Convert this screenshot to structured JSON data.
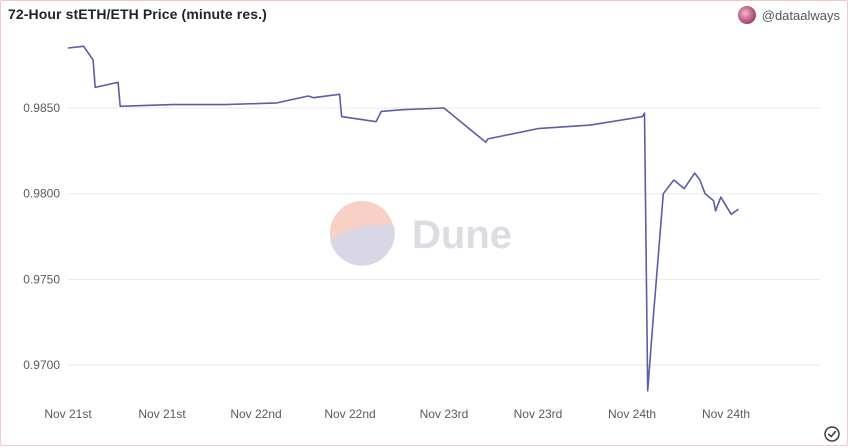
{
  "header": {
    "title": "72-Hour stETH/ETH Price (minute res.)",
    "author": "@dataalways"
  },
  "watermark": {
    "text": "Dune"
  },
  "colors": {
    "line": "#5b5ea6",
    "grid": "#e8e8ea",
    "tick": "#555b63"
  },
  "chart_data": {
    "type": "line",
    "title": "72-Hour stETH/ETH Price (minute res.)",
    "xlabel": "",
    "ylabel": "",
    "ylim": [
      0.9682,
      0.9892
    ],
    "yticks": [
      0.97,
      0.975,
      0.98,
      0.985
    ],
    "ytick_labels": [
      "0.9700",
      "0.9750",
      "0.9800",
      "0.9850"
    ],
    "xlim": [
      0,
      72
    ],
    "xticks": [
      0,
      9,
      18,
      27,
      36,
      45,
      54,
      63
    ],
    "xtick_labels": [
      "Nov 21st",
      "Nov 21st",
      "Nov 22nd",
      "Nov 22nd",
      "Nov 23rd",
      "Nov 23rd",
      "Nov 24th",
      "Nov 24th"
    ],
    "grid": true,
    "legend": "none",
    "series": [
      {
        "name": "",
        "x": [
          0,
          1.5,
          2.4,
          2.6,
          4.8,
          5.0,
          10,
          15,
          20,
          23,
          23.5,
          26,
          26.2,
          29.5,
          30,
          32,
          36,
          40,
          40.2,
          45,
          50,
          55,
          55.2,
          55.5,
          56,
          57,
          58,
          59,
          60,
          60.5,
          61,
          61.8,
          62,
          62.5,
          63,
          63.5,
          64.2
        ],
        "y": [
          0.9885,
          0.9886,
          0.9878,
          0.9862,
          0.9865,
          0.9851,
          0.9852,
          0.9852,
          0.9853,
          0.9857,
          0.9856,
          0.9858,
          0.9845,
          0.9842,
          0.9848,
          0.9849,
          0.985,
          0.983,
          0.9832,
          0.9838,
          0.984,
          0.9845,
          0.9847,
          0.9685,
          0.9725,
          0.98,
          0.9808,
          0.9803,
          0.9812,
          0.9808,
          0.98,
          0.9796,
          0.979,
          0.9798,
          0.9793,
          0.9788,
          0.9791
        ]
      }
    ]
  }
}
